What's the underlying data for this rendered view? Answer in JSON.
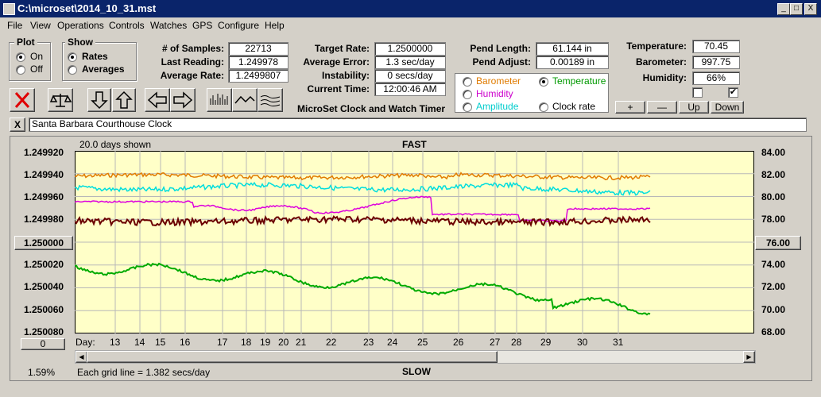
{
  "window": {
    "title": "C:\\microset\\2014_10_31.mst",
    "min": "_",
    "max": "□",
    "close": "X"
  },
  "menu": [
    "File",
    "View",
    "Operations",
    "Controls",
    "Watches",
    "GPS",
    "Configure",
    "Help"
  ],
  "plot": {
    "label": "Plot",
    "on": "On",
    "off": "Off",
    "selected": "On"
  },
  "show": {
    "label": "Show",
    "rates": "Rates",
    "averages": "Averages",
    "selected": "Rates"
  },
  "stats": {
    "samples_label": "# of Samples:",
    "samples": "22713",
    "last_label": "Last Reading:",
    "last": "1.249978",
    "avg_label": "Average Rate:",
    "avg": "1.2499807"
  },
  "rates": {
    "target_label": "Target Rate:",
    "target": "1.2500000",
    "avgerr_label": "Average Error:",
    "avgerr": "1.3 sec/day",
    "instab_label": "Instability:",
    "instab": "0 secs/day",
    "time_label": "Current Time:",
    "time": "12:00:46 AM"
  },
  "pend": {
    "len_label": "Pend Length:",
    "len": "61.144 in",
    "adj_label": "Pend Adjust:",
    "adj": "0.00189 in"
  },
  "env": {
    "temp_label": "Temperature:",
    "temp": "70.45",
    "baro_label": "Barometer:",
    "baro": "997.75",
    "hum_label": "Humidity:",
    "hum": "66%"
  },
  "checks": {
    "c1": "",
    "c2": "✔"
  },
  "series_select": {
    "barometer": "Barometer",
    "temperature": "Temperature",
    "humidity": "Humidity",
    "amplitude": "Amplitude",
    "clock_rate": "Clock rate",
    "selected": "Temperature",
    "colors": {
      "barometer": "#e07b00",
      "temperature": "#009900",
      "humidity": "#cc00cc",
      "amplitude": "#00cccc",
      "clock_rate": "#000000"
    }
  },
  "scale_buttons": {
    "plus": "+",
    "minus": "—",
    "up": "Up",
    "down": "Down"
  },
  "app_title": "MicroSet Clock and Watch Timer",
  "clock_name": "Santa Barbara Courthouse Clock",
  "clock_x": "X",
  "chart_data": {
    "type": "line",
    "header_left": "20.0 days shown",
    "top_label": "FAST",
    "bottom_label": "SLOW",
    "footer_left": "1.59%",
    "footer_note": "Each grid line = 1.382 secs/day",
    "left_ticks": [
      "1.249920",
      "1.249940",
      "1.249960",
      "1.249980",
      "1.250000",
      "1.250020",
      "1.250040",
      "1.250060",
      "1.250080"
    ],
    "center_button": "1.250000",
    "right_ticks": [
      "84.00",
      "82.00",
      "80.00",
      "78.00",
      "76.00",
      "74.00",
      "72.00",
      "70.00",
      "68.00"
    ],
    "right_button": "76.00",
    "left_button": "0",
    "day_label": "Day:",
    "days": [
      "13",
      "14",
      "15",
      "16",
      "17",
      "18",
      "19",
      "20",
      "21",
      "22",
      "23",
      "24",
      "25",
      "26",
      "27",
      "28",
      "29",
      "30",
      "31"
    ],
    "ylim_left": [
      1.24992,
      1.25008
    ],
    "ylim_right": [
      68,
      84
    ],
    "grid": true,
    "series": [
      {
        "key": "barometer",
        "color": "#e07b00"
      },
      {
        "key": "amplitude",
        "color": "#00dddd"
      },
      {
        "key": "humidity",
        "color": "#dd00dd"
      },
      {
        "key": "clock_rate",
        "color": "#6b0000"
      },
      {
        "key": "temperature",
        "color": "#00aa00"
      }
    ]
  }
}
